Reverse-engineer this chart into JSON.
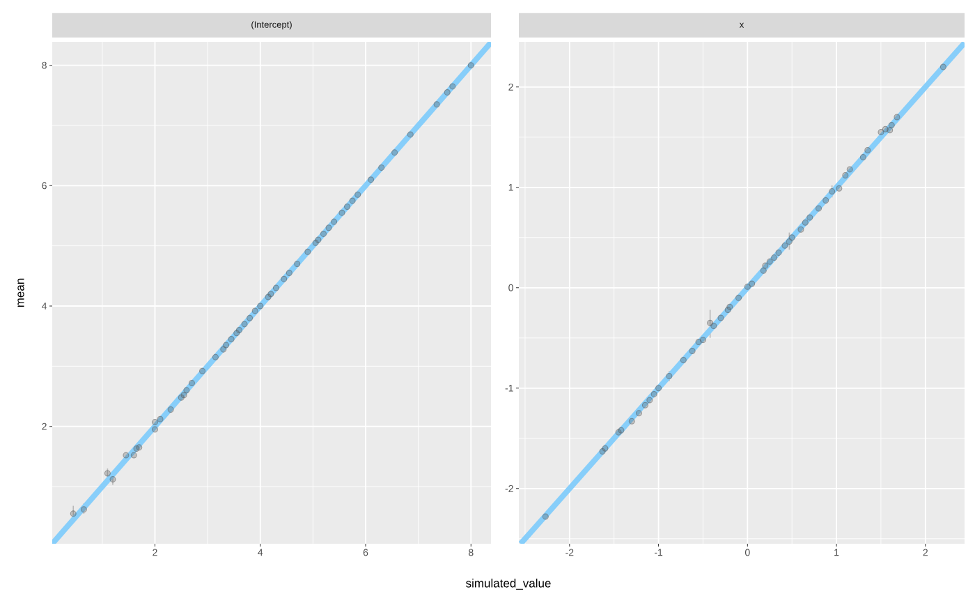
{
  "chart_data": [
    {
      "type": "scatter",
      "title": "(Intercept)",
      "xlabel": "simulated_value",
      "ylabel": "mean",
      "xlim": [
        0.05,
        8.38
      ],
      "ylim": [
        0.05,
        8.39
      ],
      "xticks": [
        2,
        4,
        6,
        8
      ],
      "yticks": [
        2,
        4,
        6,
        8
      ],
      "grid": true,
      "series": [
        {
          "marker": "circle",
          "color": "#595959",
          "x": [
            0.45,
            0.65,
            1.1,
            1.2,
            1.45,
            1.6,
            1.65,
            1.7,
            2.0,
            2.0,
            2.1,
            2.3,
            2.5,
            2.55,
            2.6,
            2.7,
            2.9,
            3.15,
            3.3,
            3.35,
            3.45,
            3.55,
            3.6,
            3.7,
            3.8,
            3.9,
            4.0,
            4.15,
            4.2,
            4.3,
            4.45,
            4.55,
            4.7,
            4.9,
            5.05,
            5.1,
            5.2,
            5.3,
            5.4,
            5.55,
            5.65,
            5.75,
            5.85,
            6.1,
            6.3,
            6.55,
            6.85,
            7.35,
            7.55,
            7.65,
            8.0
          ],
          "values": [
            0.55,
            0.62,
            1.22,
            1.12,
            1.52,
            1.52,
            1.63,
            1.65,
            1.95,
            2.07,
            2.12,
            2.28,
            2.48,
            2.52,
            2.6,
            2.72,
            2.92,
            3.15,
            3.28,
            3.35,
            3.45,
            3.55,
            3.6,
            3.7,
            3.8,
            3.92,
            4.0,
            4.15,
            4.2,
            4.3,
            4.45,
            4.55,
            4.7,
            4.9,
            5.05,
            5.1,
            5.2,
            5.3,
            5.4,
            5.55,
            5.65,
            5.75,
            5.85,
            6.1,
            6.3,
            6.55,
            6.85,
            7.35,
            7.55,
            7.65,
            8.0
          ],
          "errors": [
            [
              0.45,
              0.68
            ],
            [
              0.55,
              0.72
            ],
            [
              1.15,
              1.3
            ],
            [
              1.03,
              1.2
            ],
            null,
            null,
            null,
            null,
            null,
            null,
            null,
            null,
            null,
            null,
            null,
            null,
            null,
            null,
            null,
            null,
            null,
            null,
            null,
            null,
            null,
            null,
            null,
            null,
            null,
            null,
            null,
            null,
            null,
            null,
            null,
            null,
            null,
            null,
            null,
            null,
            null,
            null,
            null,
            null,
            null,
            null,
            null,
            null,
            null,
            null,
            null
          ]
        },
        {
          "type": "line",
          "color": "#87cefa",
          "x": [
            0.05,
            8.38
          ],
          "values": [
            0.05,
            8.38
          ]
        }
      ]
    },
    {
      "type": "scatter",
      "title": "x",
      "xlim": [
        -2.57,
        2.44
      ],
      "ylim": [
        -2.55,
        2.45
      ],
      "xticks": [
        -2,
        -1,
        0,
        1,
        2
      ],
      "yticks": [
        -2,
        -1,
        0,
        1,
        2
      ],
      "grid": true,
      "series": [
        {
          "marker": "circle",
          "color": "#595959",
          "x": [
            -2.27,
            -1.63,
            -1.6,
            -1.45,
            -1.42,
            -1.3,
            -1.22,
            -1.15,
            -1.1,
            -1.05,
            -1.0,
            -0.88,
            -0.72,
            -0.62,
            -0.55,
            -0.5,
            -0.42,
            -0.38,
            -0.3,
            -0.22,
            -0.2,
            -0.1,
            0.0,
            0.05,
            0.18,
            0.2,
            0.25,
            0.3,
            0.35,
            0.42,
            0.47,
            0.5,
            0.6,
            0.65,
            0.7,
            0.8,
            0.88,
            0.95,
            1.03,
            1.1,
            1.15,
            1.3,
            1.35,
            1.5,
            1.55,
            1.6,
            1.62,
            1.68,
            2.2
          ],
          "values": [
            -2.28,
            -1.63,
            -1.6,
            -1.44,
            -1.42,
            -1.33,
            -1.25,
            -1.17,
            -1.12,
            -1.06,
            -1.0,
            -0.88,
            -0.72,
            -0.63,
            -0.54,
            -0.52,
            -0.35,
            -0.38,
            -0.3,
            -0.22,
            -0.19,
            -0.1,
            0.01,
            0.04,
            0.17,
            0.22,
            0.26,
            0.3,
            0.35,
            0.42,
            0.46,
            0.5,
            0.58,
            0.65,
            0.7,
            0.79,
            0.87,
            0.96,
            0.99,
            1.12,
            1.18,
            1.3,
            1.37,
            1.55,
            1.58,
            1.57,
            1.62,
            1.7,
            2.2
          ],
          "errors": [
            null,
            null,
            null,
            null,
            null,
            null,
            null,
            null,
            null,
            null,
            null,
            [
              -0.93,
              -0.83
            ],
            null,
            null,
            null,
            null,
            [
              -0.5,
              -0.22
            ],
            null,
            null,
            null,
            null,
            null,
            null,
            null,
            null,
            null,
            null,
            null,
            null,
            null,
            [
              0.38,
              0.55
            ],
            null,
            null,
            null,
            null,
            null,
            null,
            [
              0.9,
              1.02
            ],
            null,
            null,
            null,
            null,
            null,
            null,
            null,
            null,
            null,
            null,
            null
          ]
        },
        {
          "type": "line",
          "color": "#87cefa",
          "x": [
            -2.55,
            2.44
          ],
          "values": [
            -2.55,
            2.44
          ]
        }
      ]
    }
  ]
}
